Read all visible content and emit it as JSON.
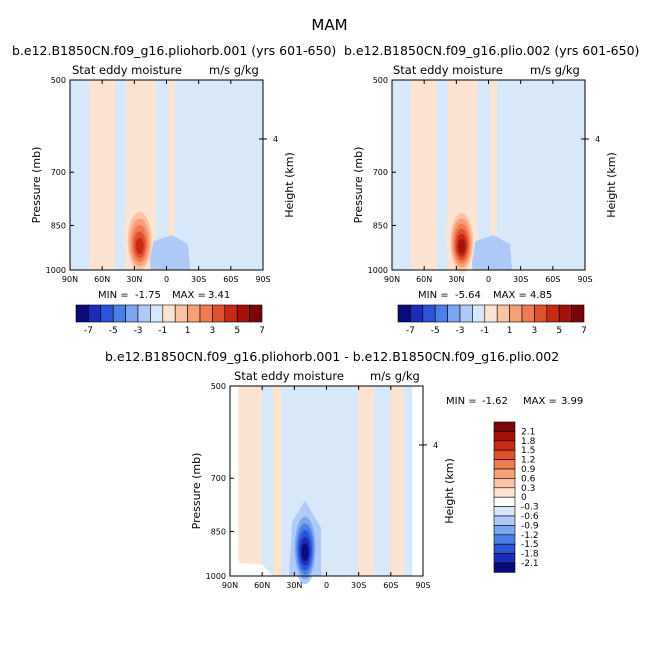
{
  "page": {
    "title": "MAM",
    "colors": {
      "bg": "#ffffff",
      "panel_blue": "#d7e8fb",
      "panel_peach": "#fde4d2"
    }
  },
  "chart_data": [
    {
      "type": "heatmap",
      "title": "b.e12.B1850CN.f09_g16.pliohorb.001 (yrs 601-650)",
      "subtitle": "Stat eddy moisture",
      "units": "m/s g/kg",
      "ylabel": "Pressure (mb)",
      "ylabel_right": "Height (km)",
      "x_ticks": [
        "90N",
        "60N",
        "30N",
        "0",
        "30S",
        "60S",
        "90S"
      ],
      "y_ticks": [
        "500",
        "700",
        "850",
        "1000"
      ],
      "y_right_ticks": [
        "4"
      ],
      "min_label": "MIN =",
      "min_value": "-1.75",
      "max_label": "MAX =",
      "max_value": "3.41",
      "colorbar_labels": [
        "-7",
        "-5",
        "-3",
        "-1",
        "1",
        "3",
        "5",
        "7"
      ],
      "peak_lat": 25,
      "peak_level": 900,
      "peak_value": 3.41
    },
    {
      "type": "heatmap",
      "title": "b.e12.B1850CN.f09_g16.plio.002 (yrs 601-650)",
      "subtitle": "Stat eddy moisture",
      "units": "m/s g/kg",
      "ylabel": "Pressure (mb)",
      "ylabel_right": "Height (km)",
      "x_ticks": [
        "90N",
        "60N",
        "30N",
        "0",
        "30S",
        "60S",
        "90S"
      ],
      "y_ticks": [
        "500",
        "700",
        "850",
        "1000"
      ],
      "y_right_ticks": [
        "4"
      ],
      "min_label": "MIN =",
      "min_value": "-5.64",
      "max_label": "MAX =",
      "max_value": "4.85",
      "colorbar_labels": [
        "-7",
        "-5",
        "-3",
        "-1",
        "1",
        "3",
        "5",
        "7"
      ],
      "peak_lat": 25,
      "peak_level": 900,
      "peak_value": 4.85
    },
    {
      "type": "heatmap",
      "title": "b.e12.B1850CN.f09_g16.pliohorb.001 - b.e12.B1850CN.f09_g16.plio.002",
      "subtitle": "Stat eddy moisture",
      "units": "m/s g/kg",
      "ylabel": "Pressure (mb)",
      "ylabel_right": "Height (km)",
      "x_ticks": [
        "90N",
        "60N",
        "30N",
        "0",
        "30S",
        "60S",
        "90S"
      ],
      "y_ticks": [
        "500",
        "700",
        "850",
        "1000"
      ],
      "y_right_ticks": [
        "4"
      ],
      "min_label": "MIN =",
      "min_value": "-1.62",
      "max_label": "MAX =",
      "max_value": "3.99",
      "colorbar_labels": [
        "2.1",
        "1.8",
        "1.5",
        "1.2",
        "0.9",
        "0.6",
        "0.3",
        "0",
        "-0.3",
        "-0.6",
        "-0.9",
        "-1.2",
        "-1.5",
        "-1.8",
        "-2.1"
      ],
      "trough_lat": 20,
      "trough_level": 900,
      "trough_value": -1.62
    }
  ],
  "colorbars": {
    "horizontal": [
      "#0a0a7a",
      "#1c2cb8",
      "#2a55d8",
      "#4a7ee8",
      "#7ca6f2",
      "#aecbf8",
      "#d7e8fb",
      "#fde4d2",
      "#fbc3a3",
      "#f7a078",
      "#f07b52",
      "#e0502d",
      "#c62a14",
      "#a5120a",
      "#7a0505"
    ],
    "vertical": [
      "#7a0505",
      "#a5120a",
      "#c62a14",
      "#e0502d",
      "#f07b52",
      "#f7a078",
      "#fbc3a3",
      "#fde4d2",
      "#ffffff",
      "#d7e8fb",
      "#aecbf8",
      "#7ca6f2",
      "#4a7ee8",
      "#2a55d8",
      "#1c2cb8",
      "#0a0a7a"
    ]
  }
}
